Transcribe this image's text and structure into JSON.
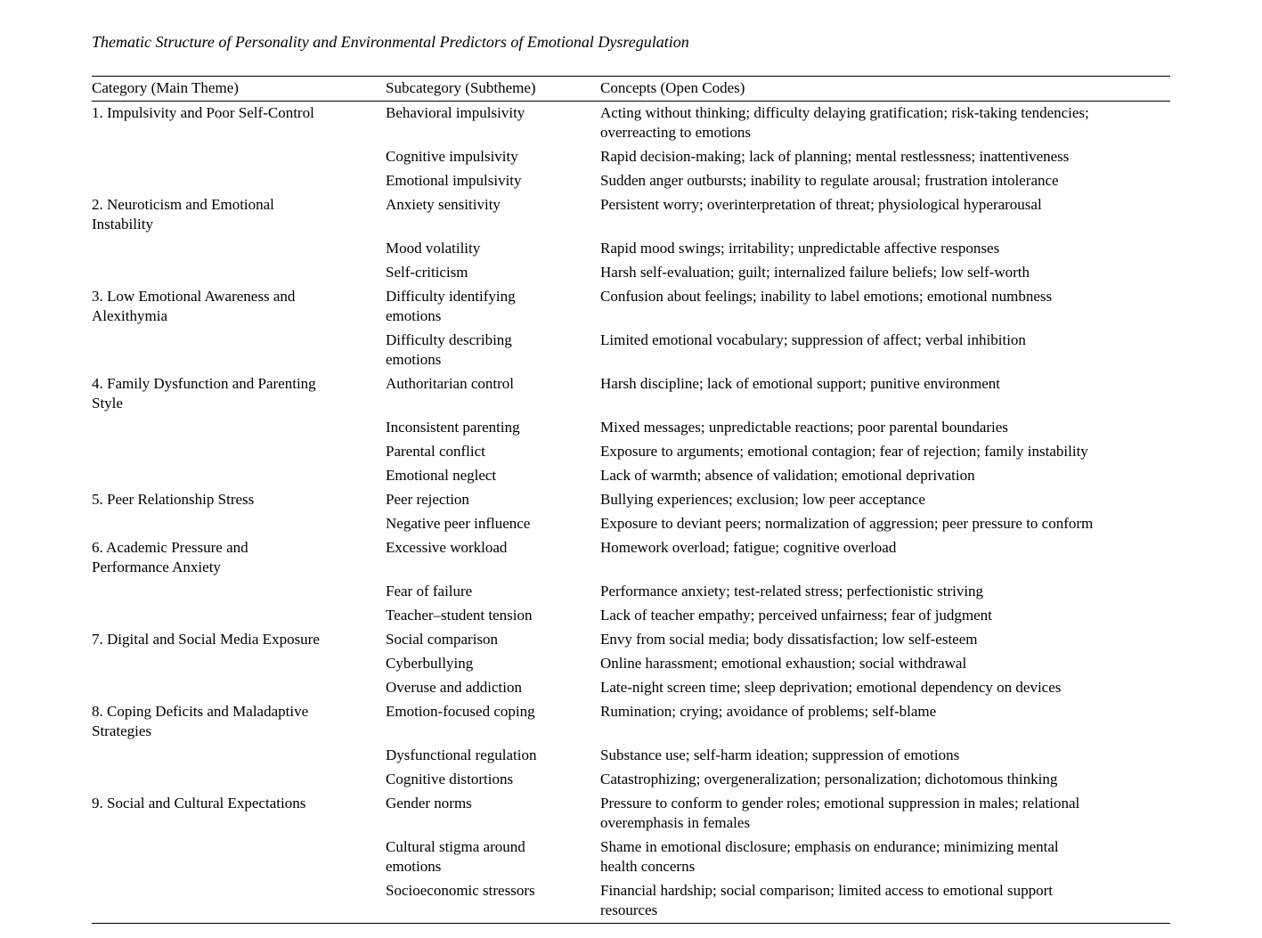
{
  "page": {
    "background_color": "#ffffff",
    "text_color": "#000000",
    "rule_color": "#000000"
  },
  "title": "Thematic Structure of Personality and Environmental Predictors of Emotional Dysregulation",
  "table": {
    "headers": [
      "Category (Main Theme)",
      "Subcategory (Subtheme)",
      "Concepts (Open Codes)"
    ],
    "rows": [
      {
        "category": "1. Impulsivity and Poor Self-Control",
        "subcategory": "Behavioral impulsivity",
        "concepts": "Acting without thinking; difficulty delaying gratification; risk-taking tendencies;\noverreacting to emotions"
      },
      {
        "category": "",
        "subcategory": "Cognitive impulsivity",
        "concepts": "Rapid decision-making; lack of planning; mental restlessness; inattentiveness"
      },
      {
        "category": "",
        "subcategory": "Emotional impulsivity",
        "concepts": "Sudden anger outbursts; inability to regulate arousal; frustration intolerance"
      },
      {
        "category": "2. Neuroticism and Emotional\nInstability",
        "subcategory": "Anxiety sensitivity",
        "concepts": "Persistent worry; overinterpretation of threat; physiological hyperarousal"
      },
      {
        "category": "",
        "subcategory": "Mood volatility",
        "concepts": "Rapid mood swings; irritability; unpredictable affective responses"
      },
      {
        "category": "",
        "subcategory": "Self-criticism",
        "concepts": "Harsh self-evaluation; guilt; internalized failure beliefs; low self-worth"
      },
      {
        "category": "3. Low Emotional Awareness and\nAlexithymia",
        "subcategory": "Difficulty identifying\nemotions",
        "concepts": "Confusion about feelings; inability to label emotions; emotional numbness"
      },
      {
        "category": "",
        "subcategory": "Difficulty describing\nemotions",
        "concepts": "Limited emotional vocabulary; suppression of affect; verbal inhibition"
      },
      {
        "category": "4. Family Dysfunction and Parenting\nStyle",
        "subcategory": "Authoritarian control",
        "concepts": "Harsh discipline; lack of emotional support; punitive environment"
      },
      {
        "category": "",
        "subcategory": "Inconsistent parenting",
        "concepts": "Mixed messages; unpredictable reactions; poor parental boundaries"
      },
      {
        "category": "",
        "subcategory": "Parental conflict",
        "concepts": "Exposure to arguments; emotional contagion; fear of rejection; family instability"
      },
      {
        "category": "",
        "subcategory": "Emotional neglect",
        "concepts": "Lack of warmth; absence of validation; emotional deprivation"
      },
      {
        "category": "5. Peer Relationship Stress",
        "subcategory": "Peer rejection",
        "concepts": "Bullying experiences; exclusion; low peer acceptance"
      },
      {
        "category": "",
        "subcategory": "Negative peer influence",
        "concepts": "Exposure to deviant peers; normalization of aggression; peer pressure to conform"
      },
      {
        "category": "6. Academic Pressure and\nPerformance Anxiety",
        "subcategory": "Excessive workload",
        "concepts": "Homework overload; fatigue; cognitive overload"
      },
      {
        "category": "",
        "subcategory": "Fear of failure",
        "concepts": "Performance anxiety; test-related stress; perfectionistic striving"
      },
      {
        "category": "",
        "subcategory": "Teacher–student tension",
        "concepts": "Lack of teacher empathy; perceived unfairness; fear of judgment"
      },
      {
        "category": "7. Digital and Social Media Exposure",
        "subcategory": "Social comparison",
        "concepts": "Envy from social media; body dissatisfaction; low self-esteem"
      },
      {
        "category": "",
        "subcategory": "Cyberbullying",
        "concepts": "Online harassment; emotional exhaustion; social withdrawal"
      },
      {
        "category": "",
        "subcategory": "Overuse and addiction",
        "concepts": "Late-night screen time; sleep deprivation; emotional dependency on devices"
      },
      {
        "category": "8. Coping Deficits and Maladaptive\nStrategies",
        "subcategory": "Emotion-focused coping",
        "concepts": "Rumination; crying; avoidance of problems; self-blame"
      },
      {
        "category": "",
        "subcategory": "Dysfunctional regulation",
        "concepts": "Substance use; self-harm ideation; suppression of emotions"
      },
      {
        "category": "",
        "subcategory": "Cognitive distortions",
        "concepts": "Catastrophizing; overgeneralization; personalization; dichotomous thinking"
      },
      {
        "category": "9. Social and Cultural Expectations",
        "subcategory": "Gender norms",
        "concepts": "Pressure to conform to gender roles; emotional suppression in males; relational\noveremphasis in females"
      },
      {
        "category": "",
        "subcategory": "Cultural stigma around\nemotions",
        "concepts": "Shame in emotional disclosure; emphasis on endurance; minimizing mental\nhealth concerns"
      },
      {
        "category": "",
        "subcategory": "Socioeconomic stressors",
        "concepts": "Financial hardship; social comparison; limited access to emotional support\nresources"
      }
    ]
  }
}
